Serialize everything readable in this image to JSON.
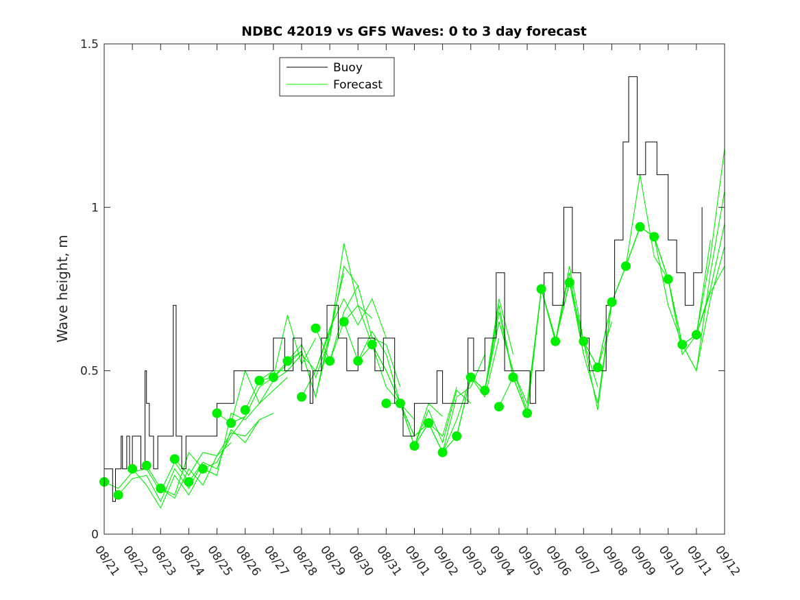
{
  "chart_data": {
    "type": "line",
    "title": "NDBC 42019 vs GFS Waves: 0 to 3 day forecast",
    "xlabel": "",
    "ylabel": "Wave height, m",
    "xlim": [
      0,
      22
    ],
    "ylim": [
      0,
      1.5
    ],
    "yticks": [
      0,
      0.5,
      1,
      1.5
    ],
    "ytick_labels": [
      "0",
      "0.5",
      "1",
      "1.5"
    ],
    "xticks": [
      0,
      1,
      2,
      3,
      4,
      5,
      6,
      7,
      8,
      9,
      10,
      11,
      12,
      13,
      14,
      15,
      16,
      17,
      18,
      19,
      20,
      21,
      22
    ],
    "xtick_labels": [
      "08/21",
      "08/22",
      "08/23",
      "08/24",
      "08/25",
      "08/26",
      "08/27",
      "08/28",
      "08/29",
      "08/30",
      "08/31",
      "09/01",
      "09/02",
      "09/03",
      "09/04",
      "09/05",
      "09/06",
      "09/07",
      "09/08",
      "09/09",
      "09/10",
      "09/11",
      "09/12"
    ],
    "x_unit": "days since 08/21",
    "legend": {
      "location": "top-left",
      "entries": [
        {
          "label": "Buoy",
          "color": "#000000"
        },
        {
          "label": "Forecast",
          "color": "#00ee00"
        }
      ]
    },
    "series": [
      {
        "name": "Buoy",
        "color": "#000000",
        "step": true,
        "x": [
          0,
          0.3,
          0.4,
          0.6,
          0.65,
          0.8,
          0.9,
          1.0,
          1.3,
          1.45,
          1.5,
          1.6,
          1.75,
          1.9,
          2.2,
          2.45,
          2.55,
          2.6,
          2.75,
          2.9,
          3.1,
          3.3,
          3.45,
          3.6,
          4.0,
          4.3,
          4.6,
          5.0,
          5.6,
          6.0,
          6.4,
          6.7,
          7.0,
          7.3,
          7.4,
          7.7,
          7.9,
          8.3,
          8.6,
          9.0,
          9.4,
          9.6,
          9.9,
          10.3,
          10.6,
          11.0,
          11.5,
          11.8,
          12.0,
          12.4,
          12.9,
          13.1,
          13.3,
          13.5,
          13.9,
          14.2,
          14.6,
          15.1,
          15.3,
          15.6,
          15.9,
          16.0,
          16.3,
          16.6,
          16.9,
          17.2,
          17.6,
          17.8,
          18.1,
          18.4,
          18.6,
          18.9,
          19.2,
          19.6,
          20.0,
          20.3,
          20.6,
          20.9,
          21.2
        ],
        "y": [
          0.2,
          0.1,
          0.2,
          0.3,
          0.2,
          0.3,
          0.2,
          0.3,
          0.2,
          0.5,
          0.4,
          0.3,
          0.2,
          0.3,
          0.3,
          0.7,
          0.3,
          0.3,
          0.2,
          0.3,
          0.3,
          0.3,
          0.3,
          0.3,
          0.4,
          0.4,
          0.5,
          0.5,
          0.5,
          0.6,
          0.5,
          0.6,
          0.5,
          0.4,
          0.5,
          0.6,
          0.7,
          0.6,
          0.5,
          0.6,
          0.6,
          0.5,
          0.6,
          0.4,
          0.3,
          0.4,
          0.4,
          0.5,
          0.4,
          0.4,
          0.6,
          0.5,
          0.5,
          0.6,
          0.8,
          0.5,
          0.5,
          0.4,
          0.5,
          0.8,
          0.7,
          0.7,
          1.0,
          0.8,
          0.6,
          0.5,
          0.5,
          0.7,
          0.9,
          1.2,
          1.4,
          1.1,
          1.2,
          1.1,
          0.9,
          0.8,
          0.7,
          0.8,
          1.0
        ]
      }
    ],
    "forecast_runs": [
      {
        "x": [
          0,
          0.5,
          1,
          1.5,
          2,
          2.5,
          3
        ],
        "y": [
          0.16,
          0.14,
          0.19,
          0.2,
          0.13,
          0.22,
          0.16
        ]
      },
      {
        "x": [
          0.5,
          1,
          1.5,
          2,
          2.5,
          3,
          3.5
        ],
        "y": [
          0.12,
          0.17,
          0.18,
          0.1,
          0.2,
          0.14,
          0.22
        ]
      },
      {
        "x": [
          1,
          1.5,
          2,
          2.5,
          3,
          3.5,
          4
        ],
        "y": [
          0.2,
          0.15,
          0.08,
          0.18,
          0.12,
          0.2,
          0.18
        ]
      },
      {
        "x": [
          1.5,
          2,
          2.5,
          3,
          3.5,
          4,
          4.5
        ],
        "y": [
          0.21,
          0.14,
          0.11,
          0.2,
          0.15,
          0.24,
          0.28
        ]
      },
      {
        "x": [
          2,
          2.5,
          3,
          3.5,
          4,
          4.5,
          5
        ],
        "y": [
          0.14,
          0.12,
          0.25,
          0.2,
          0.22,
          0.3,
          0.36
        ]
      },
      {
        "x": [
          2.5,
          3,
          3.5,
          4,
          4.5,
          5,
          5.5
        ],
        "y": [
          0.23,
          0.18,
          0.25,
          0.24,
          0.31,
          0.3,
          0.35
        ]
      },
      {
        "x": [
          3,
          3.5,
          4,
          4.5,
          5,
          5.5,
          6
        ],
        "y": [
          0.16,
          0.22,
          0.2,
          0.32,
          0.28,
          0.35,
          0.37
        ]
      },
      {
        "x": [
          3.5,
          4,
          4.5,
          5,
          5.5,
          6,
          6.5
        ],
        "y": [
          0.2,
          0.18,
          0.37,
          0.35,
          0.4,
          0.44,
          0.48
        ]
      },
      {
        "x": [
          4,
          4.5,
          5,
          5.5,
          6,
          6.5,
          7
        ],
        "y": [
          0.37,
          0.34,
          0.5,
          0.4,
          0.47,
          0.5,
          0.55
        ]
      },
      {
        "x": [
          4.5,
          5,
          5.5,
          6,
          6.5,
          7,
          7.5
        ],
        "y": [
          0.34,
          0.36,
          0.45,
          0.48,
          0.67,
          0.52,
          0.6
        ]
      },
      {
        "x": [
          5,
          5.5,
          6,
          6.5,
          7,
          7.5,
          8
        ],
        "y": [
          0.38,
          0.47,
          0.5,
          0.5,
          0.55,
          0.5,
          0.62
        ]
      },
      {
        "x": [
          5.5,
          6,
          6.5,
          7,
          7.5,
          8,
          8.5
        ],
        "y": [
          0.47,
          0.48,
          0.52,
          0.56,
          0.42,
          0.62,
          0.8
        ]
      },
      {
        "x": [
          6,
          6.5,
          7,
          7.5,
          8,
          8.5,
          9
        ],
        "y": [
          0.48,
          0.53,
          0.58,
          0.48,
          0.6,
          0.82,
          0.76
        ]
      },
      {
        "x": [
          6.5,
          7,
          7.5,
          8,
          8.5,
          9,
          9.5
        ],
        "y": [
          0.53,
          0.56,
          0.42,
          0.6,
          0.89,
          0.7,
          0.66
        ]
      },
      {
        "x": [
          7,
          7.5,
          8,
          8.5,
          9,
          9.5,
          10
        ],
        "y": [
          0.42,
          0.5,
          0.63,
          0.72,
          0.64,
          0.72,
          0.6
        ]
      },
      {
        "x": [
          7.5,
          8,
          8.5,
          9,
          9.5,
          10,
          10.5
        ],
        "y": [
          0.63,
          0.53,
          0.68,
          0.76,
          0.6,
          0.58,
          0.45
        ]
      },
      {
        "x": [
          8,
          8.5,
          9,
          9.5,
          10,
          10.5,
          11
        ],
        "y": [
          0.53,
          0.65,
          0.7,
          0.58,
          0.5,
          0.4,
          0.35
        ]
      },
      {
        "x": [
          8.5,
          9,
          9.5,
          10,
          10.5,
          11,
          11.5
        ],
        "y": [
          0.65,
          0.53,
          0.62,
          0.55,
          0.4,
          0.3,
          0.34
        ]
      },
      {
        "x": [
          9,
          9.5,
          10,
          10.5,
          11,
          11.5,
          12
        ],
        "y": [
          0.53,
          0.58,
          0.5,
          0.4,
          0.27,
          0.4,
          0.36
        ]
      },
      {
        "x": [
          9.5,
          10,
          10.5,
          11,
          11.5,
          12,
          12.5
        ],
        "y": [
          0.58,
          0.45,
          0.4,
          0.3,
          0.34,
          0.3,
          0.45
        ]
      },
      {
        "x": [
          10,
          10.5,
          11,
          11.5,
          12,
          12.5,
          13
        ],
        "y": [
          0.4,
          0.4,
          0.27,
          0.38,
          0.28,
          0.44,
          0.4
        ]
      },
      {
        "x": [
          10.5,
          11,
          11.5,
          12,
          12.5,
          13,
          13.5
        ],
        "y": [
          0.4,
          0.27,
          0.34,
          0.25,
          0.42,
          0.45,
          0.55
        ]
      },
      {
        "x": [
          11,
          11.5,
          12,
          12.5,
          13,
          13.5,
          14
        ],
        "y": [
          0.27,
          0.34,
          0.25,
          0.35,
          0.48,
          0.42,
          0.6
        ]
      },
      {
        "x": [
          11.5,
          12,
          12.5,
          13,
          13.5,
          14,
          14.5
        ],
        "y": [
          0.34,
          0.25,
          0.3,
          0.48,
          0.44,
          0.72,
          0.55
        ]
      },
      {
        "x": [
          12,
          12.5,
          13,
          13.5,
          14,
          14.5,
          15
        ],
        "y": [
          0.25,
          0.3,
          0.48,
          0.44,
          0.65,
          0.5,
          0.38
        ]
      },
      {
        "x": [
          12.5,
          13,
          13.5,
          14,
          14.5,
          15,
          15.5
        ],
        "y": [
          0.3,
          0.48,
          0.44,
          0.68,
          0.48,
          0.37,
          0.75
        ]
      },
      {
        "x": [
          13,
          13.5,
          14,
          14.5,
          15,
          15.5,
          16
        ],
        "y": [
          0.48,
          0.44,
          0.7,
          0.48,
          0.37,
          0.75,
          0.6
        ]
      },
      {
        "x": [
          13.5,
          14,
          14.5,
          15,
          15.5,
          16,
          16.5
        ],
        "y": [
          0.44,
          0.65,
          0.5,
          0.4,
          0.75,
          0.59,
          0.77
        ]
      },
      {
        "x": [
          14,
          14.5,
          15,
          15.5,
          16,
          16.5,
          17
        ],
        "y": [
          0.39,
          0.48,
          0.37,
          0.75,
          0.59,
          0.8,
          0.55
        ]
      },
      {
        "x": [
          14.5,
          15,
          15.5,
          16,
          16.5,
          17,
          17.5
        ],
        "y": [
          0.48,
          0.37,
          0.75,
          0.59,
          0.77,
          0.59,
          0.45
        ]
      },
      {
        "x": [
          15,
          15.5,
          16,
          16.5,
          17,
          17.5,
          18
        ],
        "y": [
          0.37,
          0.75,
          0.59,
          0.77,
          0.59,
          0.51,
          0.65
        ]
      },
      {
        "x": [
          15.5,
          16,
          16.5,
          17,
          17.5,
          18,
          18.5
        ],
        "y": [
          0.75,
          0.59,
          0.82,
          0.59,
          0.51,
          0.71,
          0.82
        ]
      },
      {
        "x": [
          16,
          16.5,
          17,
          17.5,
          18,
          18.5,
          19
        ],
        "y": [
          0.59,
          0.77,
          0.55,
          0.4,
          0.71,
          0.82,
          0.94
        ]
      },
      {
        "x": [
          16.5,
          17,
          17.5,
          18,
          18.5,
          19,
          19.5
        ],
        "y": [
          0.77,
          0.59,
          0.38,
          0.71,
          0.82,
          0.94,
          0.91
        ]
      },
      {
        "x": [
          17,
          17.5,
          18,
          18.5,
          19,
          19.5,
          20
        ],
        "y": [
          0.59,
          0.51,
          0.71,
          0.82,
          1.1,
          0.85,
          0.78
        ]
      },
      {
        "x": [
          17.5,
          18,
          18.5,
          19,
          19.5,
          20,
          20.5
        ],
        "y": [
          0.51,
          0.71,
          0.82,
          0.94,
          0.91,
          0.7,
          0.58
        ]
      },
      {
        "x": [
          18,
          18.5,
          19,
          19.5,
          20,
          20.5,
          21
        ],
        "y": [
          0.71,
          0.82,
          0.94,
          0.91,
          0.78,
          0.58,
          0.61
        ]
      },
      {
        "x": [
          18.5,
          19,
          19.5,
          20,
          20.5,
          21,
          21.5
        ],
        "y": [
          0.82,
          0.94,
          0.91,
          0.78,
          0.55,
          0.61,
          0.9
        ]
      },
      {
        "x": [
          19,
          19.5,
          20,
          20.5,
          21,
          21.5,
          22
        ],
        "y": [
          0.94,
          0.91,
          0.78,
          0.58,
          0.61,
          0.85,
          1.18
        ]
      },
      {
        "x": [
          19.5,
          20,
          20.5,
          21,
          21.5,
          22
        ],
        "y": [
          0.91,
          0.78,
          0.58,
          0.5,
          0.8,
          1.05
        ]
      },
      {
        "x": [
          20,
          20.5,
          21,
          21.5,
          22
        ],
        "y": [
          0.78,
          0.58,
          0.61,
          0.75,
          0.95
        ]
      },
      {
        "x": [
          20.5,
          21,
          21.5,
          22
        ],
        "y": [
          0.58,
          0.5,
          0.72,
          0.88
        ]
      },
      {
        "x": [
          21,
          21.5,
          22
        ],
        "y": [
          0.61,
          0.74,
          0.82
        ]
      }
    ],
    "markers": {
      "name": "Forecast analysis points",
      "color": "#00ee00",
      "x": [
        0,
        0.5,
        1,
        1.5,
        2,
        2.5,
        3,
        3.5,
        4,
        4.5,
        5,
        5.5,
        6,
        6.5,
        7,
        7.5,
        8,
        8.5,
        9,
        9.5,
        10,
        10.5,
        11,
        11.5,
        12,
        12.5,
        13,
        13.5,
        14,
        14.5,
        15,
        15.5,
        16,
        16.5,
        17,
        17.5,
        18,
        18.5,
        19,
        19.5,
        20,
        20.5,
        21
      ],
      "y": [
        0.16,
        0.12,
        0.2,
        0.21,
        0.14,
        0.23,
        0.16,
        0.2,
        0.37,
        0.34,
        0.38,
        0.47,
        0.48,
        0.53,
        0.42,
        0.63,
        0.53,
        0.65,
        0.53,
        0.58,
        0.4,
        0.4,
        0.27,
        0.34,
        0.25,
        0.3,
        0.48,
        0.44,
        0.39,
        0.48,
        0.37,
        0.75,
        0.59,
        0.77,
        0.59,
        0.51,
        0.71,
        0.82,
        0.94,
        0.91,
        0.78,
        0.58,
        0.61
      ]
    }
  }
}
